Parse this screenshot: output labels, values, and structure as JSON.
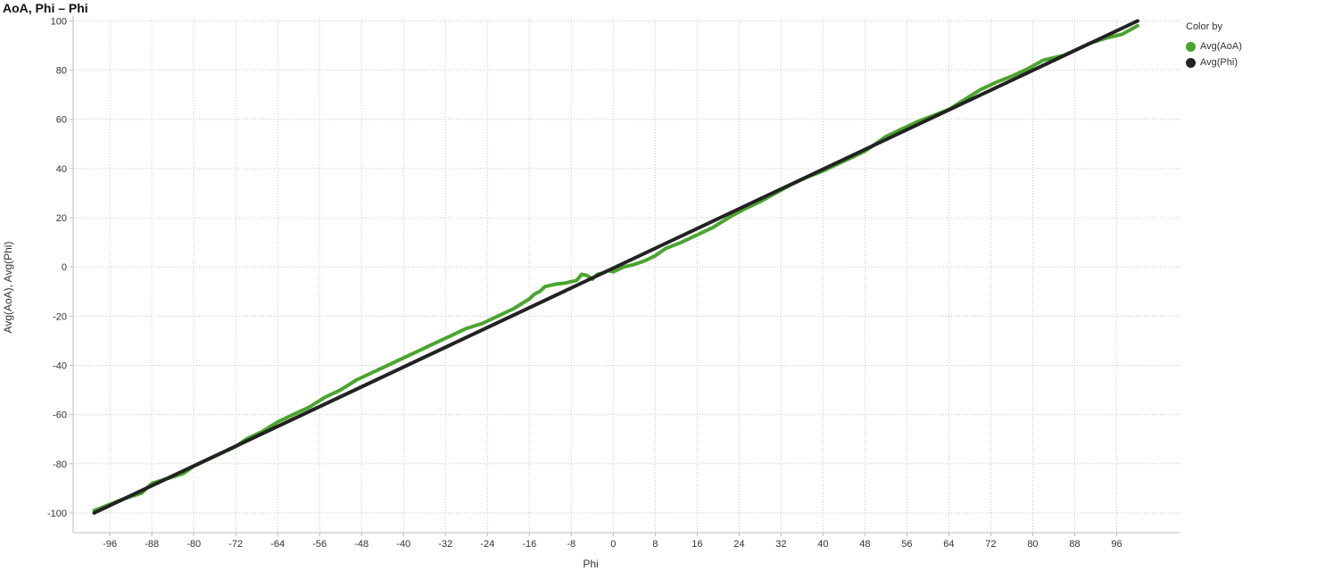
{
  "chart_data": {
    "type": "line",
    "title": "AoA, Phi – Phi",
    "xlabel": "Phi",
    "ylabel": "Avg(AoA), Avg(Phi)",
    "xlim": [
      -103,
      108
    ],
    "ylim": [
      -108,
      100.5
    ],
    "x_ticks": [
      -96,
      -88,
      -80,
      -72,
      -64,
      -56,
      -48,
      -40,
      -32,
      -24,
      -16,
      -8,
      0,
      8,
      16,
      24,
      32,
      40,
      48,
      56,
      64,
      72,
      80,
      88,
      96
    ],
    "y_ticks": [
      -100,
      -80,
      -60,
      -40,
      -20,
      0,
      20,
      40,
      60,
      80,
      100
    ],
    "grid": true,
    "legend": {
      "title": "Color by",
      "placement": "right"
    },
    "series": [
      {
        "name": "Avg(AoA)",
        "color": "#4aa52e",
        "x": [
          -99,
          -96,
          -93,
          -90,
          -88,
          -85,
          -82,
          -80,
          -77,
          -74,
          -72,
          -70,
          -67,
          -64,
          -61,
          -58,
          -55,
          -52,
          -49,
          -46,
          -43,
          -40,
          -37,
          -34,
          -31,
          -28,
          -25,
          -22,
          -19,
          -16,
          -15,
          -14,
          -13,
          -11,
          -9,
          -7,
          -6,
          -5,
          -4,
          -3,
          -2,
          -1,
          0,
          1,
          2,
          4,
          6,
          8,
          10,
          13,
          16,
          19,
          22,
          25,
          28,
          31,
          34,
          37,
          40,
          43,
          46,
          48,
          50,
          52,
          55,
          58,
          61,
          64,
          67,
          70,
          73,
          76,
          79,
          82,
          84,
          86,
          88,
          91,
          94,
          97,
          100
        ],
        "y": [
          -99,
          -96.5,
          -94,
          -92,
          -88,
          -86,
          -84,
          -81,
          -78,
          -75,
          -73,
          -70,
          -67,
          -63,
          -60,
          -57,
          -53,
          -50,
          -46,
          -43,
          -40,
          -37,
          -34,
          -31,
          -28,
          -25,
          -23,
          -20,
          -17,
          -13,
          -11,
          -10,
          -8,
          -7,
          -6.5,
          -5.5,
          -3,
          -3.5,
          -5,
          -3,
          -2.5,
          -1.5,
          -2,
          -1,
          0,
          1,
          2.5,
          4.5,
          7.5,
          10,
          13,
          16,
          20,
          23.5,
          26.5,
          30,
          33.5,
          36.5,
          39,
          42,
          45,
          47,
          50,
          53,
          56,
          59,
          61.5,
          64,
          68,
          72,
          75,
          77.5,
          80.5,
          84,
          85,
          86,
          88,
          91,
          93,
          94.5,
          98
        ]
      },
      {
        "name": "Avg(Phi)",
        "color": "#222222",
        "x": [
          -99,
          100
        ],
        "y": [
          -100,
          100
        ]
      }
    ]
  }
}
